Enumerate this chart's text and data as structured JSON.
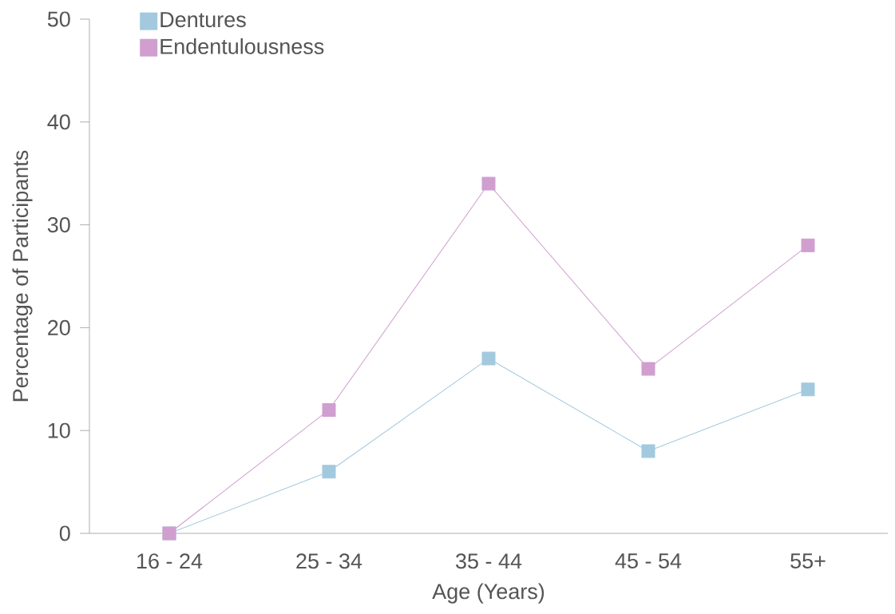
{
  "chart_data": {
    "type": "line",
    "xlabel": "Age (Years)",
    "ylabel": "Percentage of Participants",
    "categories": [
      "16 - 24",
      "25 - 34",
      "35 - 44",
      "45 - 54",
      "55+"
    ],
    "series": [
      {
        "name": "Dentures",
        "color": "#a3c9de",
        "values": [
          0,
          6,
          17,
          8,
          14
        ]
      },
      {
        "name": "Endentulousness",
        "color": "#d09fcf",
        "values": [
          0,
          12,
          34,
          16,
          28
        ]
      }
    ],
    "ylim": [
      0,
      50
    ],
    "yticks": [
      0,
      10,
      20,
      30,
      40,
      50
    ],
    "grid": false,
    "legend": "top left",
    "marker": "square",
    "line_style": "solid"
  }
}
